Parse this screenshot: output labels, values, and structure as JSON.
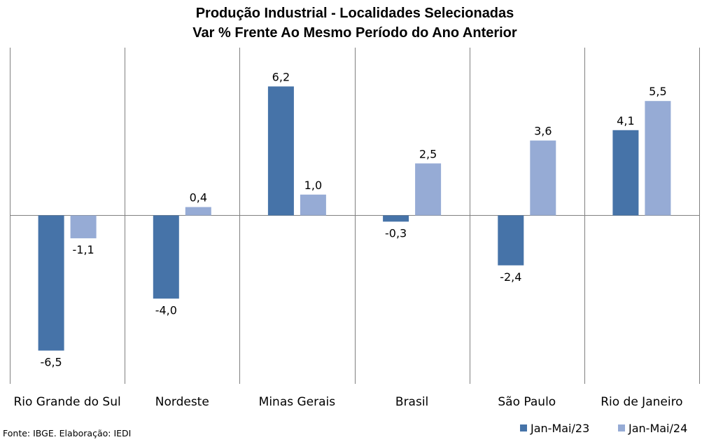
{
  "chart_data": {
    "type": "bar",
    "title": "Produção Industrial - Localidades Selecionadas",
    "subtitle": "Var % Frente Ao Mesmo Período do Ano Anterior",
    "categories": [
      "Rio Grande do Sul",
      "Nordeste",
      "Minas Gerais",
      "Brasil",
      "São Paulo",
      "Rio de Janeiro"
    ],
    "series": [
      {
        "name": "Jan-Mai/23",
        "color": "#4673a8",
        "values": [
          -6.5,
          -4.0,
          6.2,
          -0.3,
          -2.4,
          4.1
        ],
        "labels": [
          "-6,5",
          "-4,0",
          "6,2",
          "-0,3",
          "-2,4",
          "4,1"
        ]
      },
      {
        "name": "Jan-Mai/24",
        "color": "#96abd5",
        "values": [
          -1.1,
          0.4,
          1.0,
          2.5,
          3.6,
          5.5
        ],
        "labels": [
          "-1,1",
          "0,4",
          "1,0",
          "2,5",
          "3,6",
          "5,5"
        ]
      }
    ],
    "ylim": [
      -8,
      8
    ],
    "grid": false,
    "legend": "bottom-right"
  },
  "source": "Fonte: IBGE. Elaboração: IEDI"
}
